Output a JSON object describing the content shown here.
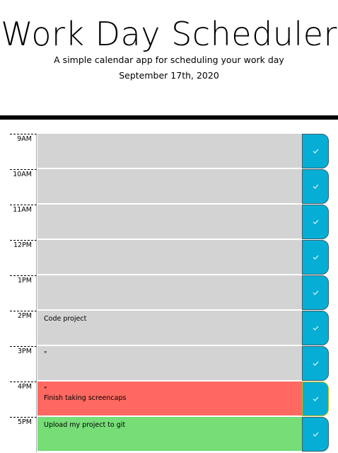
{
  "header": {
    "title": "Work Day Scheduler",
    "subtitle": "A simple calendar app for scheduling your work day",
    "date": "September 17th, 2020"
  },
  "rows": [
    {
      "hour": "9AM",
      "text": "",
      "state": "past"
    },
    {
      "hour": "10AM",
      "text": "",
      "state": "past"
    },
    {
      "hour": "11AM",
      "text": "",
      "state": "past"
    },
    {
      "hour": "12PM",
      "text": "",
      "state": "past"
    },
    {
      "hour": "1PM",
      "text": "",
      "state": "past"
    },
    {
      "hour": "2PM",
      "text": "Code project",
      "state": "past"
    },
    {
      "hour": "3PM",
      "text": "\"",
      "state": "past"
    },
    {
      "hour": "4PM",
      "text": "\"\nFinish taking screencaps",
      "state": "present"
    },
    {
      "hour": "5PM",
      "text": "Upload my project to git",
      "state": "future"
    }
  ],
  "icons": {
    "save": "check-icon"
  },
  "colors": {
    "past": "#d3d3d3",
    "present": "#ff6961",
    "future": "#77dd77",
    "save_button": "#06aed5"
  }
}
